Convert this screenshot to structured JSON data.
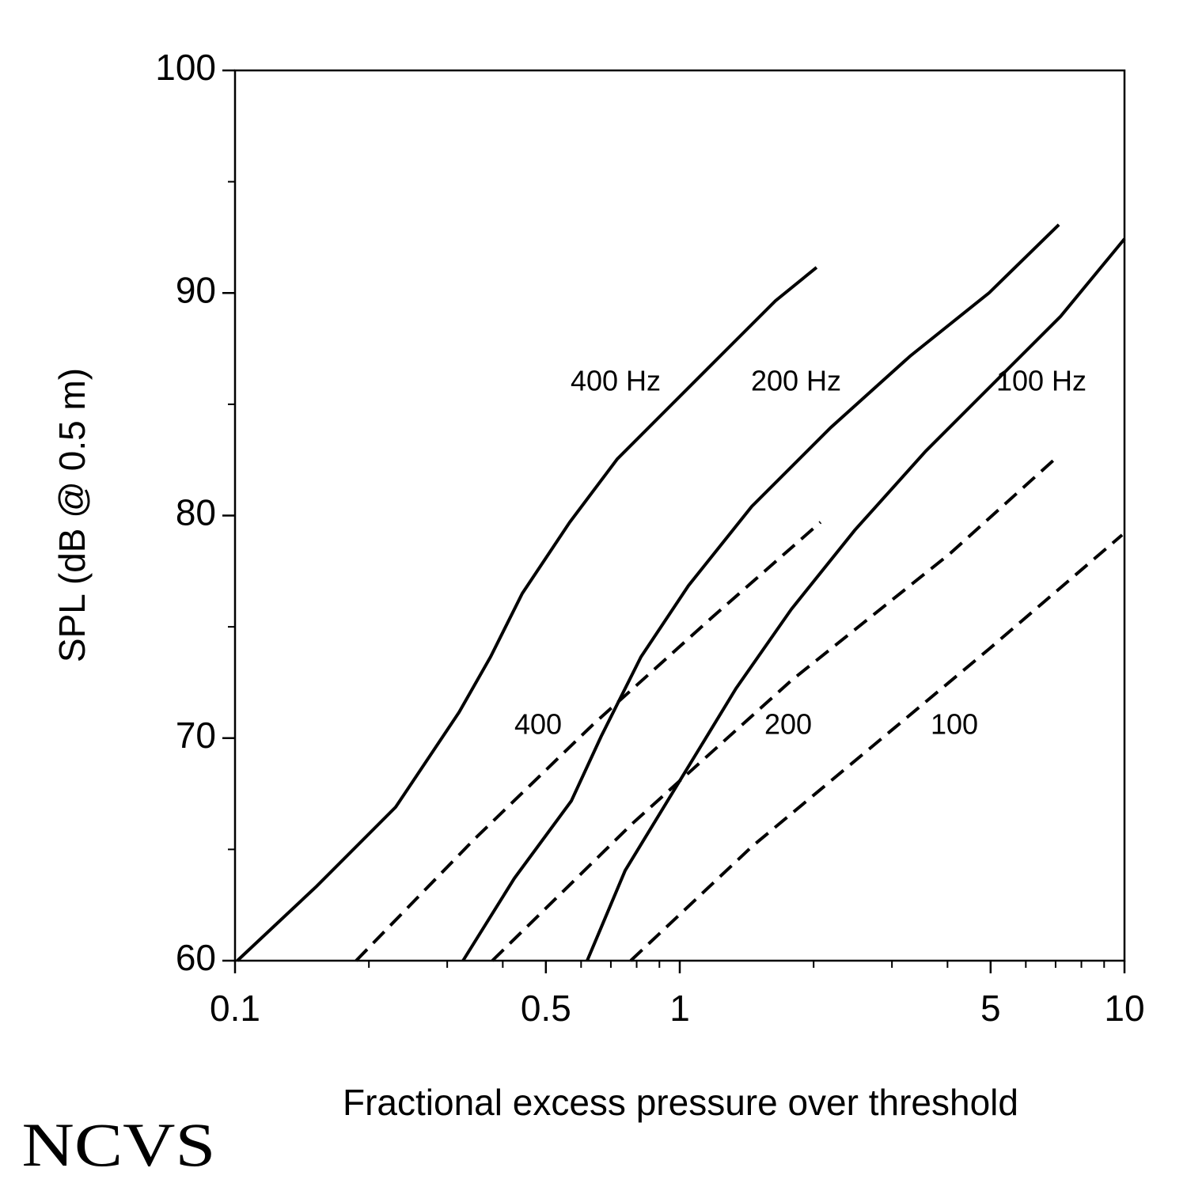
{
  "chart_data": {
    "type": "line",
    "xlabel": "Fractional excess pressure over threshold",
    "ylabel": "SPL (dB @ 0.5 m)",
    "xscale": "log",
    "xlim": [
      0.1,
      10
    ],
    "ylim": [
      60,
      100
    ],
    "xticks": [
      0.1,
      0.5,
      1,
      5,
      10
    ],
    "xminorticks": [
      0.2,
      0.3,
      0.4,
      0.6,
      0.7,
      0.8,
      0.9,
      2,
      3,
      4,
      6,
      7,
      8,
      9
    ],
    "yticks": [
      60,
      70,
      80,
      90,
      100
    ],
    "yminorticks": [
      65,
      75,
      85,
      95
    ],
    "grid": false,
    "series": [
      {
        "name": "400 Hz",
        "color": "#000000",
        "style": "solid",
        "x": [
          0.1012,
          0.1525,
          0.2297,
          0.319,
          0.3755,
          0.4425,
          0.5657,
          0.7235,
          0.9638,
          1.284,
          1.642,
          2.031
        ],
        "values": [
          60,
          63.34,
          66.9,
          71.16,
          73.65,
          76.5,
          79.7,
          82.54,
          85.03,
          87.52,
          89.65,
          91.15
        ]
      },
      {
        "name": "200 Hz",
        "color": "#000000",
        "style": "solid",
        "x": [
          0.3255,
          0.4248,
          0.5704,
          0.6665,
          0.8181,
          1.046,
          1.452,
          2.187,
          3.295,
          4.963,
          7.119
        ],
        "values": [
          60,
          63.7,
          67.18,
          70.1,
          73.65,
          76.85,
          80.41,
          83.96,
          87.16,
          90.01,
          93.07
        ]
      },
      {
        "name": "100 Hz",
        "color": "#000000",
        "style": "solid",
        "x": [
          0.6192,
          0.7538,
          1.004,
          1.338,
          1.782,
          2.474,
          3.576,
          5.17,
          7.176,
          10
        ],
        "values": [
          60,
          64.05,
          68.14,
          72.23,
          75.79,
          79.34,
          82.9,
          86.1,
          88.94,
          92.43
        ]
      },
      {
        "name": "400",
        "color": "#000000",
        "style": "dashed",
        "x": [
          0.1872,
          0.3461,
          0.6397,
          1.183,
          2.073
        ],
        "values": [
          60,
          65.48,
          70.63,
          75.43,
          79.7
        ]
      },
      {
        "name": "200",
        "color": "#000000",
        "style": "dashed",
        "x": [
          0.3788,
          0.7852,
          1.782,
          4.045,
          6.973
        ],
        "values": [
          60,
          66.19,
          72.59,
          78.28,
          82.54
        ]
      },
      {
        "name": "100",
        "color": "#000000",
        "style": "dashed",
        "x": [
          0.7756,
          1.452,
          2.684,
          4.963,
          9.878
        ],
        "values": [
          60,
          65.12,
          69.56,
          74.01,
          79.13
        ]
      }
    ]
  },
  "logo": "NCVS"
}
